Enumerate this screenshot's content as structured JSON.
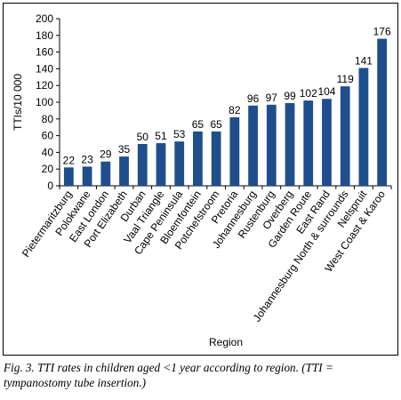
{
  "chart_data": {
    "type": "bar",
    "categories": [
      "Pietermaritzburg",
      "Polokwane",
      "East London",
      "Port Elizabeth",
      "Durban",
      "Vaal Triangle",
      "Cape Peninsula",
      "Bloemfontein",
      "Potchefstroom",
      "Pretoria",
      "Johannesburg",
      "Rustenburg",
      "Overberg",
      "Garden Route",
      "East Rand",
      "Johannesburg North & surrounds",
      "Nelspruit",
      "West Coast & Karoo"
    ],
    "values": [
      22,
      23,
      29,
      35,
      50,
      51,
      53,
      65,
      65,
      82,
      96,
      97,
      99,
      102,
      104,
      119,
      141,
      176
    ],
    "data_labels": [
      "22",
      "23",
      "29",
      "35",
      "50",
      "51",
      "53",
      "65",
      "65",
      "82",
      "96",
      "97",
      "99",
      "102",
      "104",
      "119",
      "141",
      "176"
    ],
    "xlabel": "Region",
    "ylabel": "TTIs/10 000",
    "ylim": [
      0,
      200
    ],
    "yticks": [
      0,
      20,
      40,
      60,
      80,
      100,
      120,
      140,
      160,
      180,
      200
    ],
    "grid": false,
    "bar_color": "#1f4e8c"
  },
  "caption": "Fig. 3. TTI rates in children aged <1 year according to region. (TTI = tympanostomy tube insertion.)"
}
